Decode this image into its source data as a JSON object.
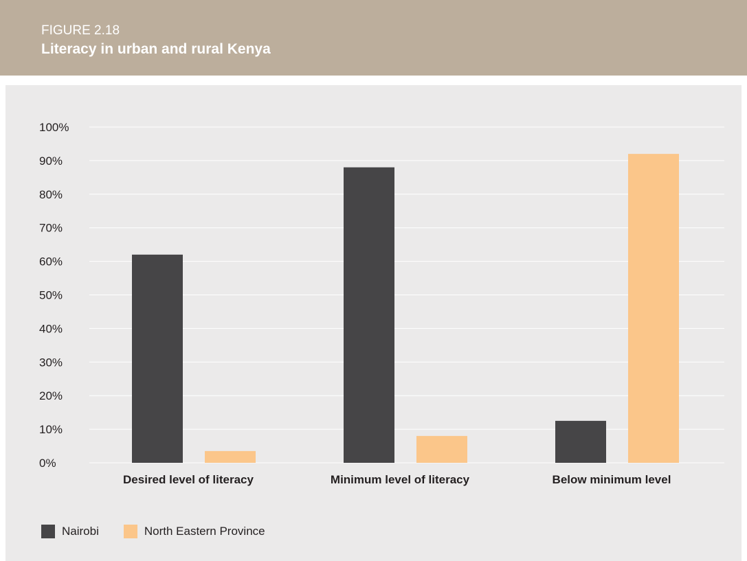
{
  "figure": {
    "label": "FIGURE 2.18",
    "title": "Literacy in urban and rural Kenya"
  },
  "colors": {
    "header_bg": "#bcae9c",
    "panel_bg": "#ebeaea",
    "nairobi": "#464547",
    "north_eastern": "#fbc68a"
  },
  "chart_data": {
    "type": "bar",
    "categories": [
      "Desired level of literacy",
      "Minimum level of literacy",
      "Below minimum level"
    ],
    "series": [
      {
        "name": "Nairobi",
        "color": "#464547",
        "values": [
          62,
          88,
          12.5
        ]
      },
      {
        "name": "North Eastern Province",
        "color": "#fbc68a",
        "values": [
          3.5,
          8,
          92
        ]
      }
    ],
    "yticks": [
      "100%",
      "90%",
      "80%",
      "70%",
      "60%",
      "50%",
      "40%",
      "30%",
      "20%",
      "10%",
      "0%"
    ],
    "ylim": [
      0,
      100
    ],
    "grid": true,
    "legend_position": "bottom-left"
  }
}
